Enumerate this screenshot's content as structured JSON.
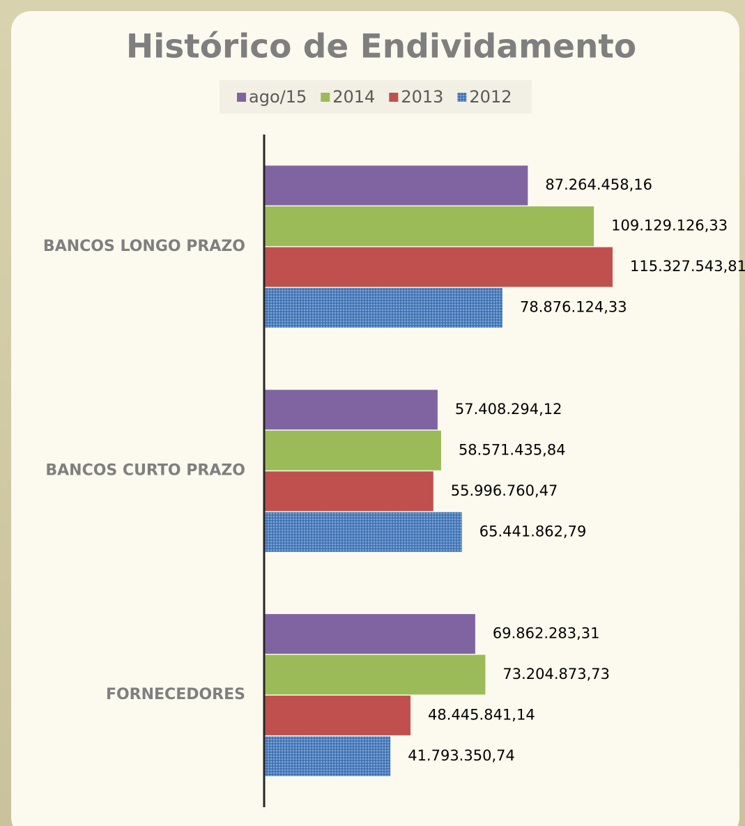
{
  "chart_data": {
    "type": "barh",
    "title": "Histórico de Endividamento",
    "categories": [
      "BANCOS LONGO PRAZO",
      "BANCOS CURTO PRAZO",
      "FORNECEDORES"
    ],
    "series": [
      {
        "name": "ago/15",
        "color": "#8064a2",
        "values": [
          87264458.16,
          57408294.12,
          69862283.31
        ],
        "value_labels": [
          "87.264.458,16",
          "57.408.294,12",
          "69.862.283,31"
        ]
      },
      {
        "name": "2014",
        "color": "#9bbb59",
        "values": [
          109129126.33,
          58571435.84,
          73204873.73
        ],
        "value_labels": [
          "109.129.126,33",
          "58.571.435,84",
          "73.204.873,73"
        ]
      },
      {
        "name": "2013",
        "color": "#c0504d",
        "values": [
          115327543.81,
          55996760.47,
          48445841.14
        ],
        "value_labels": [
          "115.327.543,81",
          "55.996.760,47",
          "48.445.841,14"
        ]
      },
      {
        "name": "2012",
        "color": "#4f81bd",
        "pattern": "dotted",
        "values": [
          78876124.33,
          65441862.79,
          41793350.74
        ],
        "value_labels": [
          "78.876.124,33",
          "65.441.862,79",
          "41.793.350,74"
        ]
      }
    ],
    "xlim": [
      0,
      140000000
    ],
    "legend": "top"
  }
}
